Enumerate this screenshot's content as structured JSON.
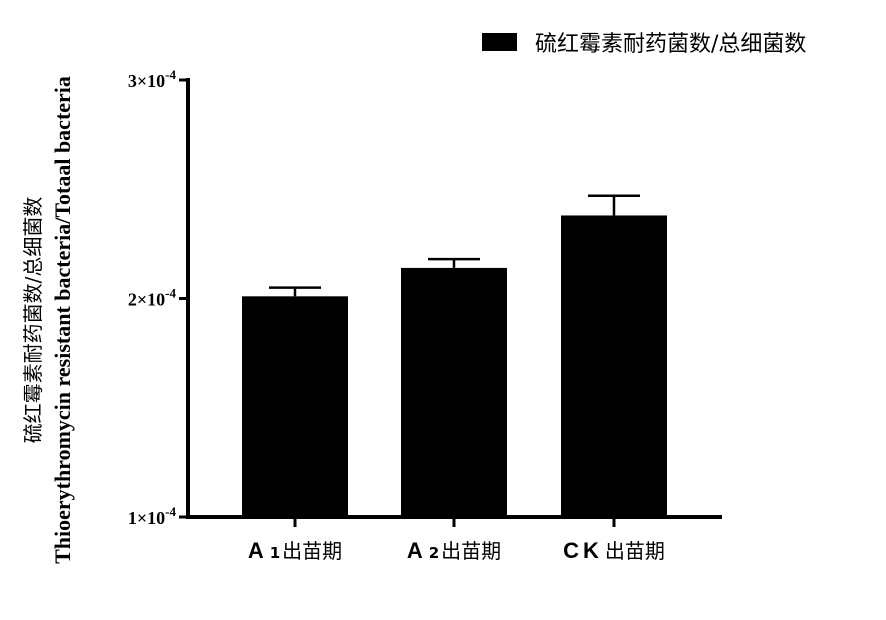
{
  "chart_data": {
    "type": "bar",
    "categories": [
      "A ₁ 出苗期",
      "A ₂ 出苗期",
      "C K 出苗期"
    ],
    "category_parts": [
      {
        "latin": "A",
        "sub": "1",
        "cn": "出苗期"
      },
      {
        "latin": "A",
        "sub": "2",
        "cn": "出苗期"
      },
      {
        "latin": "CK",
        "sub": "",
        "cn": "出苗期"
      }
    ],
    "series": [
      {
        "name": "硫红霉素耐药菌数/总细菌数",
        "values": [
          0.000201,
          0.000214,
          0.000238
        ],
        "errors": [
          4e-06,
          4e-06,
          9e-06
        ],
        "color": "#000000"
      }
    ],
    "ylim": [
      0.0001,
      0.0003
    ],
    "yticks": [
      {
        "value": 0.0003,
        "mantissa": "3×10",
        "exp": "-4"
      },
      {
        "value": 0.0002,
        "mantissa": "2×10",
        "exp": "-4"
      },
      {
        "value": 0.0001,
        "mantissa": "1×10",
        "exp": "-4"
      }
    ],
    "ylabel_line1": "硫红霉素耐药菌数/总细菌数",
    "ylabel_line2": "Thioerythromycin resistant bacteria/Totaal bacteria",
    "legend_position": "top-right",
    "grid": false
  }
}
